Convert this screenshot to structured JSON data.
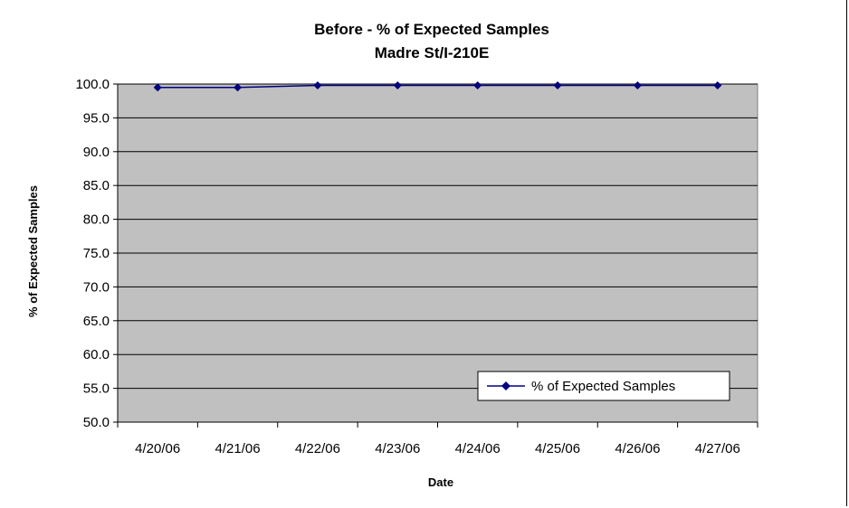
{
  "chart_data": {
    "type": "line",
    "title": "Before - % of Expected Samples",
    "subtitle": "Madre St/I-210E",
    "xlabel": "Date",
    "ylabel": "% of Expected Samples",
    "categories": [
      "4/20/06",
      "4/21/06",
      "4/22/06",
      "4/23/06",
      "4/24/06",
      "4/25/06",
      "4/26/06",
      "4/27/06"
    ],
    "series": [
      {
        "name": "% of Expected Samples",
        "values": [
          99.5,
          99.5,
          99.8,
          99.8,
          99.8,
          99.8,
          99.8,
          99.8
        ],
        "color": "#000080",
        "marker": "diamond"
      }
    ],
    "ylim": [
      50.0,
      100.0
    ],
    "yticks": [
      "50.0",
      "55.0",
      "60.0",
      "65.0",
      "70.0",
      "75.0",
      "80.0",
      "85.0",
      "90.0",
      "95.0",
      "100.0"
    ],
    "grid": true,
    "plot_background": "#c0c0c0",
    "legend_position": "bottom-right"
  }
}
